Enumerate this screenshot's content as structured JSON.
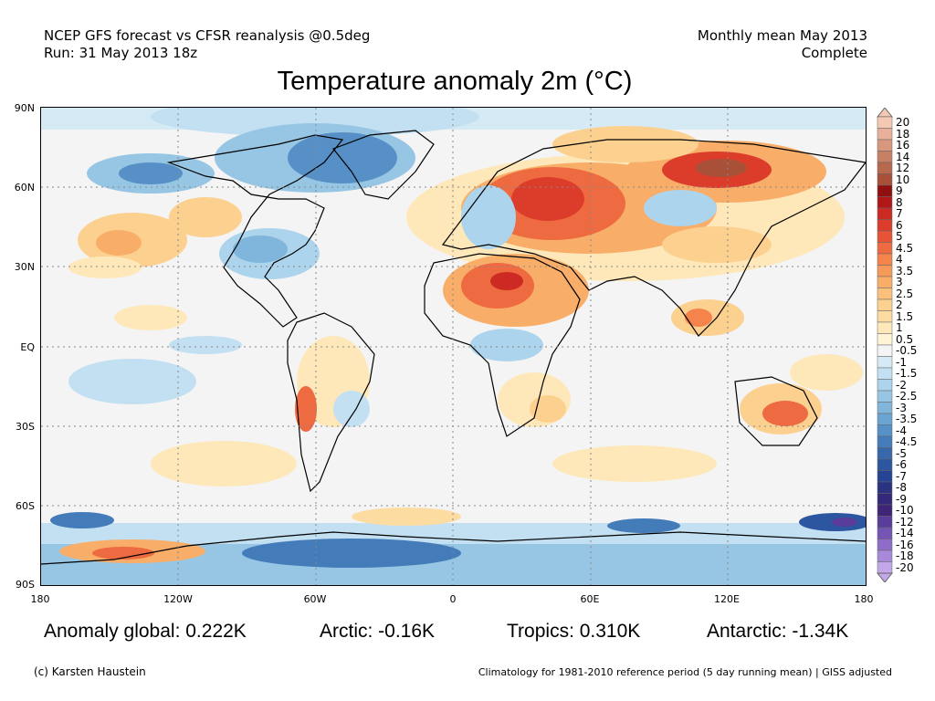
{
  "header": {
    "line1": "NCEP GFS forecast vs CFSR reanalysis @0.5deg",
    "line2": "Run: 31 May 2013 18z",
    "right1": "Monthly mean May 2013",
    "right2": "Complete"
  },
  "title": "Temperature anomaly 2m (°C)",
  "lat_labels": [
    "90N",
    "60N",
    "30N",
    "EQ",
    "30S",
    "60S",
    "90S"
  ],
  "lon_labels": [
    "180",
    "120W",
    "60W",
    "0",
    "60E",
    "120E",
    "180"
  ],
  "colorbar": {
    "labels": [
      "20",
      "18",
      "16",
      "14",
      "12",
      "10",
      "9",
      "8",
      "7",
      "6",
      "5",
      "4.5",
      "4",
      "3.5",
      "3",
      "2.5",
      "2",
      "1.5",
      "1",
      "0.5",
      "-0.5",
      "-1",
      "-1.5",
      "-2",
      "-2.5",
      "-3",
      "-3.5",
      "-4",
      "-4.5",
      "-5",
      "-6",
      "-7",
      "-8",
      "-9",
      "-10",
      "-12",
      "-14",
      "-16",
      "-18",
      "-20"
    ],
    "colors": [
      "#f5c8b4",
      "#e8b09a",
      "#d8987e",
      "#c88064",
      "#b8684c",
      "#a85038",
      "#901010",
      "#b01818",
      "#cc2a22",
      "#dc3c2a",
      "#e65336",
      "#ee6a40",
      "#f4834c",
      "#f69a5a",
      "#f8ae68",
      "#fac07c",
      "#fcd08e",
      "#fddca2",
      "#fee8ba",
      "#fff4d6",
      "#f4f4f4",
      "#d6eaf6",
      "#c2e0f2",
      "#acd4ec",
      "#96c6e4",
      "#80b6dc",
      "#6aa4d2",
      "#5690c6",
      "#447cba",
      "#3868ac",
      "#2c56a0",
      "#264494",
      "#2a3282",
      "#34287a",
      "#402478",
      "#5a3c9a",
      "#7454b4",
      "#8e6cc8",
      "#a888da",
      "#c2a8ea"
    ]
  },
  "stats": {
    "global": "Anomaly global: 0.222K",
    "arctic": "Arctic: -0.16K",
    "tropics": "Tropics: 0.310K",
    "antarctic": "Antarctic: -1.34K"
  },
  "footer": {
    "credit": "(c) Karsten Haustein",
    "climatology": "Climatology for 1981-2010 reference period (5 day running mean) | GISS adjusted"
  },
  "legend_colors": {
    "ocean_neutral": "#f4f4f4",
    "coast": "#000000",
    "grid": "#888888"
  }
}
